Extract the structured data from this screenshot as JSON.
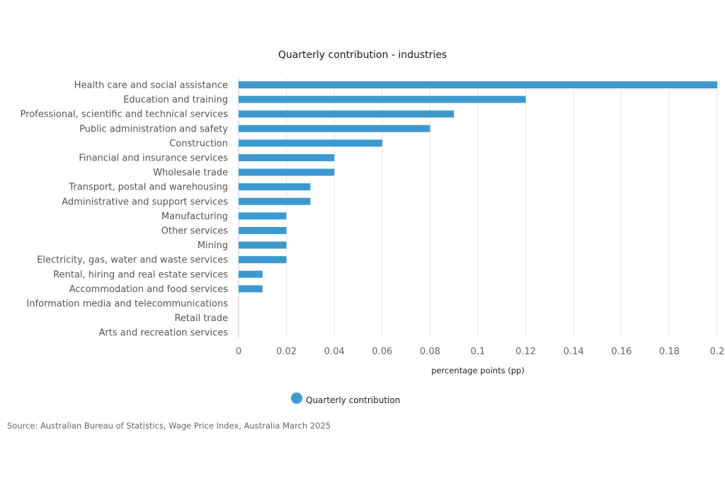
{
  "chart_data": {
    "type": "bar",
    "orientation": "horizontal",
    "title": "Quarterly contribution - industries",
    "xlabel": "percentage points (pp)",
    "ylabel": "",
    "xlim": [
      0,
      0.2
    ],
    "x_ticks": [
      "0",
      "0.02",
      "0.04",
      "0.06",
      "0.08",
      "0.1",
      "0.12",
      "0.14",
      "0.16",
      "0.18",
      "0.2"
    ],
    "x_tick_values": [
      0,
      0.02,
      0.04,
      0.06,
      0.08,
      0.1,
      0.12,
      0.14,
      0.16,
      0.18,
      0.2
    ],
    "grid": "vertical",
    "categories": [
      "Health care and social assistance",
      "Education and training",
      "Professional, scientific and technical services",
      "Public administration and safety",
      "Construction",
      "Financial and insurance services",
      "Wholesale trade",
      "Transport, postal and warehousing",
      "Administrative and support services",
      "Manufacturing",
      "Other services",
      "Mining",
      "Electricity, gas, water and waste services",
      "Rental, hiring and real estate services",
      "Accommodation and food services",
      "Information media and telecommunications",
      "Retail trade",
      "Arts and recreation services"
    ],
    "series": [
      {
        "name": "Quarterly contribution",
        "color": "#3d9ad1",
        "values": [
          0.2,
          0.12,
          0.09,
          0.08,
          0.06,
          0.04,
          0.04,
          0.03,
          0.03,
          0.02,
          0.02,
          0.02,
          0.02,
          0.01,
          0.01,
          0.0,
          0.0,
          0.0
        ]
      }
    ],
    "legend": {
      "position": "bottom",
      "entries": [
        "Quarterly contribution"
      ]
    }
  },
  "source": "Source: Australian Bureau of Statistics, Wage Price Index, Australia March 2025"
}
